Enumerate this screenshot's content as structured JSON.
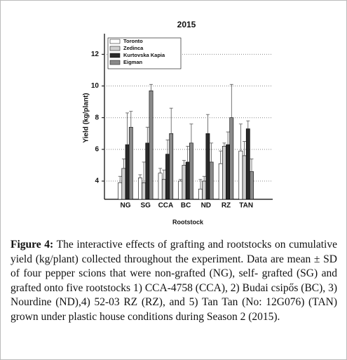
{
  "chart_data": {
    "type": "bar",
    "title": "2015",
    "x_label": "Rootstock",
    "y_label": "Yield (kg/plant)",
    "categories": [
      "NG",
      "SG",
      "CCA",
      "BC",
      "ND",
      "RZ",
      "TAN"
    ],
    "series": [
      {
        "name": "Toronto",
        "color": "#ffffff",
        "values": [
          3.9,
          4.2,
          4.5,
          4.0,
          3.5,
          5.1,
          5.9
        ],
        "errors": [
          0.4,
          0.2,
          0.3,
          0.1,
          0.6,
          0.8,
          1.7
        ]
      },
      {
        "name": "Zedinca",
        "color": "#d0d0d0",
        "values": [
          4.8,
          3.9,
          4.1,
          5.0,
          4.0,
          6.2,
          5.6
        ],
        "errors": [
          0.6,
          1.3,
          0.6,
          0.3,
          0.3,
          0.2,
          0.9
        ]
      },
      {
        "name": "Kurtovska Kapia",
        "color": "#2a2a2a",
        "values": [
          6.3,
          6.4,
          5.7,
          5.2,
          7.0,
          6.3,
          7.3
        ],
        "errors": [
          2.0,
          1.0,
          0.9,
          1.0,
          1.2,
          0.8,
          0.5
        ]
      },
      {
        "name": "Eigman",
        "color": "#8a8a8a",
        "values": [
          7.4,
          9.7,
          7.0,
          6.4,
          5.2,
          8.0,
          4.6
        ],
        "errors": [
          1.0,
          0.4,
          1.6,
          1.2,
          1.2,
          2.1,
          0.8
        ]
      }
    ],
    "ylim": [
      2.85,
      13.3
    ],
    "yticks": [
      4,
      6,
      8,
      10,
      12
    ],
    "grid": true,
    "legend": "top-left"
  },
  "caption": {
    "label": "Figure 4:",
    "text": "The interactive effects of grafting and rootstocks on cumulative yield (kg/plant) collected throughout the experiment. Data are mean ± SD of four pepper scions that were non-grafted (NG), self- grafted (SG) and grafted onto five rootstocks 1) CCA-4758 (CCA), 2) Budai csipős (BC), 3) Nourdine (ND),4) 52-03 RZ (RZ), and 5) Tan Tan (No: 12G076) (TAN) grown under plastic house conditions during Season 2 (2015)."
  }
}
